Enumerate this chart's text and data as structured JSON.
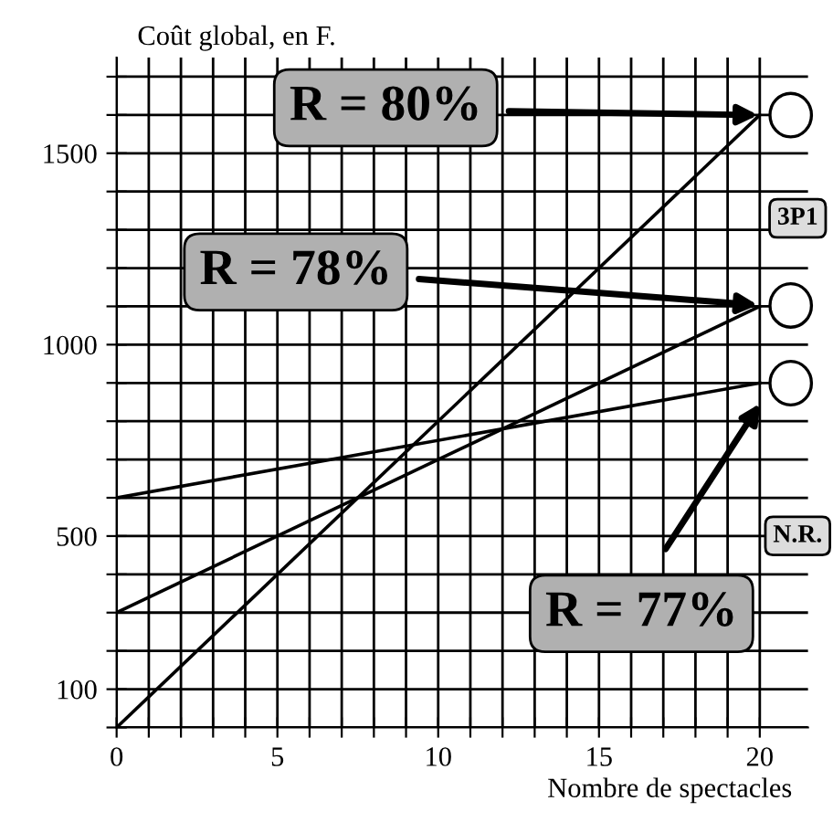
{
  "chart_data": {
    "type": "line",
    "xlabel": "Nombre de spectacles",
    "ylabel": "Coût global, en F.",
    "series": [
      {
        "color": "#000000",
        "values": [
          0,
          1600
        ]
      },
      {
        "color": "#000000",
        "values": [
          300,
          1100
        ]
      },
      {
        "color": "#000000",
        "values": [
          600,
          900
        ]
      }
    ],
    "x": [
      0,
      20
    ],
    "xlim": [
      0,
      21.5
    ],
    "ylim": [
      0,
      1750
    ],
    "xticks": [
      {
        "value": 0,
        "label": "0"
      },
      {
        "value": 1,
        "label": null
      },
      {
        "value": 2,
        "label": null
      },
      {
        "value": 3,
        "label": null
      },
      {
        "value": 4,
        "label": null
      },
      5,
      {
        "value": 6,
        "label": null
      },
      {
        "value": 7,
        "label": null
      },
      {
        "value": 8,
        "label": null
      },
      {
        "value": 9,
        "label": null
      },
      10,
      {
        "value": 11,
        "label": null
      },
      {
        "value": 12,
        "label": null
      },
      {
        "value": 13,
        "label": null
      },
      {
        "value": 14,
        "label": null
      },
      15,
      {
        "value": 16,
        "label": null
      },
      {
        "value": 17,
        "label": null
      },
      {
        "value": 18,
        "label": null
      },
      {
        "value": 19,
        "label": null
      },
      20
    ],
    "yticks": [
      {
        "value": 0,
        "label": null
      },
      100,
      {
        "value": 200,
        "label": null
      },
      {
        "value": 300,
        "label": null
      },
      {
        "value": 400,
        "label": null
      },
      500,
      {
        "value": 600,
        "label": null
      },
      {
        "value": 700,
        "label": null
      },
      {
        "value": 800,
        "label": null
      },
      {
        "value": 900,
        "label": null
      },
      1000,
      {
        "value": 1100,
        "label": null
      },
      {
        "value": 1200,
        "label": null
      },
      {
        "value": 1300,
        "label": null
      },
      {
        "value": 1400,
        "label": null
      },
      1500,
      {
        "value": 1600,
        "label": null
      },
      {
        "value": 1700,
        "label": null
      }
    ],
    "grid": true,
    "legend": false,
    "line_style": "solid",
    "annotations": [
      "R = 80%",
      "R = 78%",
      "R = 77%",
      "3P1",
      "N.R."
    ]
  }
}
